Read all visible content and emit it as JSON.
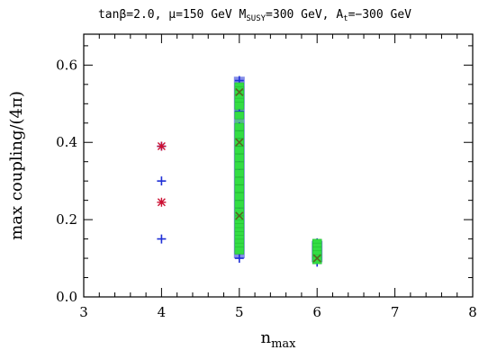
{
  "chart_data": {
    "type": "scatter",
    "title": "tanβ=2.0, μ=150 GeV M",
    "title_sub": "SUSY",
    "title_rest": "=300 GeV, A",
    "title_sub2": "t",
    "title_end": "=−300 GeV",
    "xlabel": "n",
    "xlabel_sub": "max",
    "ylabel": "max coupling/(4π)",
    "xlim": [
      3,
      8
    ],
    "ylim": [
      0,
      0.68
    ],
    "x_ticks": [
      "3",
      "4",
      "5",
      "6",
      "7",
      "8"
    ],
    "y_ticks": [
      "0.0",
      "0.2",
      "0.4",
      "0.6"
    ],
    "grid": false,
    "colors": {
      "blue": "#1f2fd6",
      "red": "#cc1133",
      "green": "#33dd44",
      "dark": "#556622"
    },
    "series": [
      {
        "marker": "plus",
        "color": "#1f2fd6",
        "points": [
          [
            4,
            0.39
          ],
          [
            4,
            0.3
          ],
          [
            4,
            0.15
          ],
          [
            5,
            0.56
          ],
          [
            5,
            0.52
          ],
          [
            5,
            0.48
          ],
          [
            5,
            0.44
          ],
          [
            5,
            0.4
          ],
          [
            5,
            0.36
          ],
          [
            5,
            0.32
          ],
          [
            5,
            0.28
          ],
          [
            5,
            0.24
          ],
          [
            5,
            0.2
          ],
          [
            5,
            0.16
          ],
          [
            5,
            0.12
          ],
          [
            5,
            0.1
          ],
          [
            6,
            0.14
          ],
          [
            6,
            0.12
          ],
          [
            6,
            0.1
          ],
          [
            6,
            0.09
          ]
        ]
      },
      {
        "marker": "star",
        "color": "#cc1133",
        "points": [
          [
            4,
            0.39
          ],
          [
            4,
            0.245
          ],
          [
            5,
            0.52
          ],
          [
            5,
            0.3
          ],
          [
            6,
            0.1
          ]
        ]
      },
      {
        "marker": "square",
        "color": "#33dd44",
        "points": [
          [
            5,
            0.545
          ],
          [
            5,
            0.535
          ],
          [
            5,
            0.525
          ],
          [
            5,
            0.515
          ],
          [
            5,
            0.505
          ],
          [
            5,
            0.495
          ],
          [
            5,
            0.47
          ],
          [
            5,
            0.44
          ],
          [
            5,
            0.42
          ],
          [
            5,
            0.4
          ],
          [
            5,
            0.38
          ],
          [
            5,
            0.36
          ],
          [
            5,
            0.34
          ],
          [
            5,
            0.32
          ],
          [
            5,
            0.3
          ],
          [
            5,
            0.28
          ],
          [
            5,
            0.26
          ],
          [
            5,
            0.24
          ],
          [
            5,
            0.22
          ],
          [
            5,
            0.2
          ],
          [
            5,
            0.19
          ],
          [
            5,
            0.18
          ],
          [
            5,
            0.17
          ],
          [
            5,
            0.16
          ],
          [
            5,
            0.15
          ],
          [
            5,
            0.14
          ],
          [
            5,
            0.13
          ],
          [
            5,
            0.12
          ],
          [
            6,
            0.14
          ],
          [
            6,
            0.13
          ],
          [
            6,
            0.12
          ],
          [
            6,
            0.11
          ],
          [
            6,
            0.1
          ],
          [
            6,
            0.095
          ]
        ]
      },
      {
        "marker": "cross",
        "color": "#556622",
        "points": [
          [
            5,
            0.53
          ],
          [
            5,
            0.4
          ],
          [
            5,
            0.21
          ],
          [
            6,
            0.1
          ]
        ]
      }
    ]
  }
}
